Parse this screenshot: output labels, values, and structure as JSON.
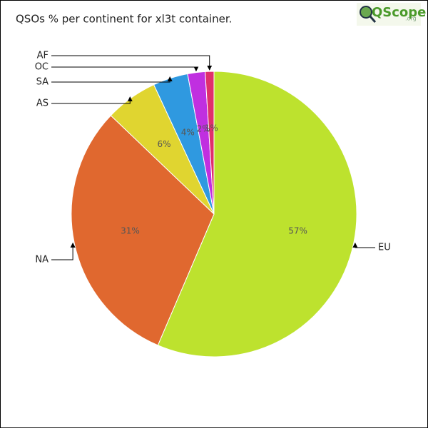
{
  "chart_data": {
    "type": "pie",
    "title": "QSOs % per continent for xl3t container.",
    "logo": "QScope",
    "logo_suffix": ".org",
    "categories": [
      "EU",
      "NA",
      "AS",
      "SA",
      "OC",
      "AF"
    ],
    "values": [
      57,
      31,
      6,
      4,
      2,
      1
    ],
    "value_labels": [
      "57%",
      "31%",
      "6%",
      "4%",
      "2%",
      "1%"
    ],
    "colors": [
      "#bde22e",
      "#e0682f",
      "#e0d530",
      "#2f99e0",
      "#c02fe0",
      "#e02f6b"
    ]
  }
}
